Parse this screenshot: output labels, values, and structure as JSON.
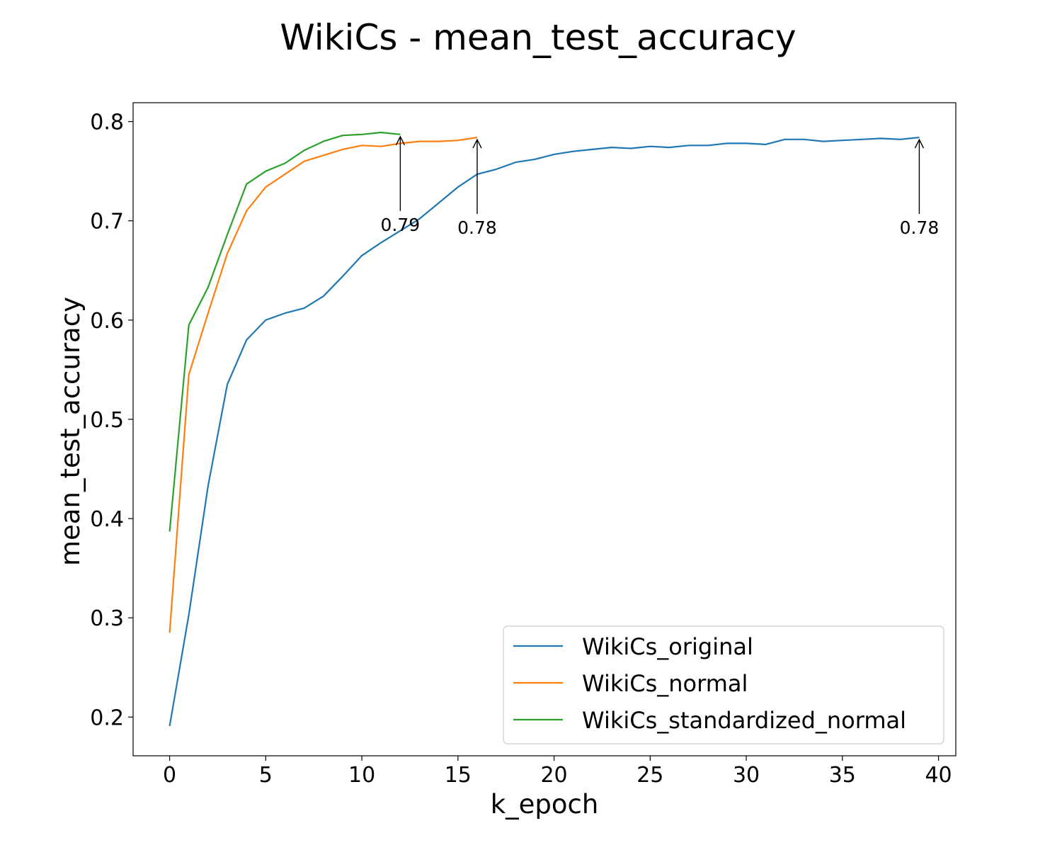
{
  "chart_data": {
    "type": "line",
    "title": "WikiCs - mean_test_accuracy",
    "xlabel": "k_epoch",
    "ylabel": "mean_test_accuracy",
    "xlim": [
      -1.9,
      40.9
    ],
    "ylim": [
      0.161,
      0.819
    ],
    "xticks": [
      0,
      5,
      10,
      15,
      20,
      25,
      30,
      35,
      40
    ],
    "yticks": [
      0.2,
      0.3,
      0.4,
      0.5,
      0.6,
      0.7,
      0.8
    ],
    "xtick_labels": [
      "0",
      "5",
      "10",
      "15",
      "20",
      "25",
      "30",
      "35",
      "40"
    ],
    "ytick_labels": [
      "0.2",
      "0.3",
      "0.4",
      "0.5",
      "0.6",
      "0.7",
      "0.8"
    ],
    "grid": false,
    "legend_position": "lower-right",
    "series": [
      {
        "name": "WikiCs_original",
        "color": "#1f77b4",
        "x": [
          0,
          1,
          2,
          3,
          4,
          5,
          6,
          7,
          8,
          9,
          10,
          11,
          12,
          13,
          14,
          15,
          16,
          17,
          18,
          19,
          20,
          21,
          22,
          23,
          24,
          25,
          26,
          27,
          28,
          29,
          30,
          31,
          32,
          33,
          34,
          35,
          36,
          37,
          38,
          39
        ],
        "y": [
          0.191,
          0.303,
          0.433,
          0.535,
          0.58,
          0.6,
          0.607,
          0.612,
          0.624,
          0.644,
          0.665,
          0.678,
          0.69,
          0.702,
          0.718,
          0.734,
          0.747,
          0.752,
          0.759,
          0.762,
          0.767,
          0.77,
          0.772,
          0.774,
          0.773,
          0.775,
          0.774,
          0.776,
          0.776,
          0.778,
          0.778,
          0.777,
          0.782,
          0.782,
          0.78,
          0.781,
          0.782,
          0.783,
          0.782,
          0.784
        ]
      },
      {
        "name": "WikiCs_normal",
        "color": "#ff7f0e",
        "x": [
          0,
          1,
          2,
          3,
          4,
          5,
          6,
          7,
          8,
          9,
          10,
          11,
          12,
          13,
          14,
          15,
          16
        ],
        "y": [
          0.285,
          0.545,
          0.607,
          0.667,
          0.71,
          0.734,
          0.747,
          0.76,
          0.766,
          0.772,
          0.776,
          0.775,
          0.778,
          0.78,
          0.78,
          0.781,
          0.784
        ]
      },
      {
        "name": "WikiCs_standardized_normal",
        "color": "#2ca02c",
        "x": [
          0,
          1,
          2,
          3,
          4,
          5,
          6,
          7,
          8,
          9,
          10,
          11,
          12
        ],
        "y": [
          0.387,
          0.595,
          0.633,
          0.686,
          0.737,
          0.75,
          0.758,
          0.771,
          0.78,
          0.786,
          0.787,
          0.789,
          0.787
        ]
      }
    ],
    "annotations": [
      {
        "text": "0.79",
        "x": 12,
        "y": 0.787,
        "series": "WikiCs_standardized_normal"
      },
      {
        "text": "0.78",
        "x": 16,
        "y": 0.784,
        "series": "WikiCs_normal"
      },
      {
        "text": "0.78",
        "x": 39,
        "y": 0.784,
        "series": "WikiCs_original"
      }
    ]
  }
}
